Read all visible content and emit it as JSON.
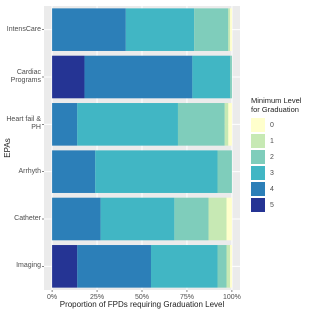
{
  "chart_data": {
    "type": "stacked-barh",
    "xlabel": "Proportion of FPDs requiring Graduation Level",
    "ylabel": "EPAs",
    "legend_title": "Minimum Level for Graduation",
    "legend_position": "right",
    "grid": true,
    "categories": [
      "IntensCare",
      "Cardiac Programs",
      "Heart fail & PH",
      "Arrhyth",
      "Catheter",
      "Imaging"
    ],
    "series": [
      {
        "name": "0",
        "color": "#ffffcc",
        "values": [
          1,
          0,
          2,
          0,
          3,
          1
        ]
      },
      {
        "name": "1",
        "color": "#c7e9b4",
        "values": [
          1,
          0,
          2,
          0,
          10,
          2
        ]
      },
      {
        "name": "2",
        "color": "#7fcdbb",
        "values": [
          19,
          1,
          26,
          8,
          19,
          5
        ]
      },
      {
        "name": "3",
        "color": "#41b6c4",
        "values": [
          38,
          21,
          56,
          68,
          41,
          37
        ]
      },
      {
        "name": "4",
        "color": "#2c7fb8",
        "values": [
          41,
          60,
          14,
          24,
          27,
          41
        ]
      },
      {
        "name": "5",
        "color": "#253494",
        "values": [
          0,
          18,
          0,
          0,
          0,
          14
        ]
      }
    ],
    "xlim": [
      -4.5,
      104.5
    ],
    "xticks": [
      {
        "value": 0,
        "label": "0%"
      },
      {
        "value": 25,
        "label": "25%"
      },
      {
        "value": 50,
        "label": "50%"
      },
      {
        "value": 75,
        "label": "75%"
      },
      {
        "value": 100,
        "label": "100%"
      }
    ]
  }
}
